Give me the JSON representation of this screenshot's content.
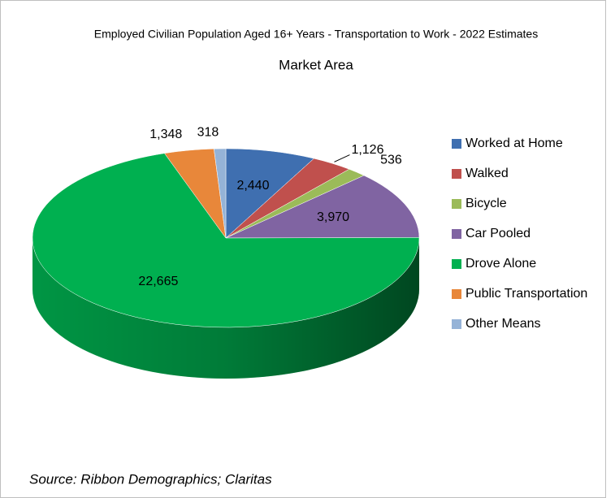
{
  "chart_data": {
    "type": "pie",
    "title": "Employed Civilian Population Aged 16+ Years - Transportation to Work - 2022 Estimates",
    "subtitle": "Market Area",
    "categories": [
      "Worked at Home",
      "Walked",
      "Bicycle",
      "Car Pooled",
      "Drove Alone",
      "Public Transportation",
      "Other Means"
    ],
    "values": [
      2440,
      1126,
      536,
      3970,
      22665,
      1348,
      318
    ],
    "value_labels": [
      "2,440",
      "1,126",
      "536",
      "3,970",
      "22,665",
      "1,348",
      "318"
    ],
    "colors": [
      "#3f6fb0",
      "#c0504d",
      "#9bbb59",
      "#8064a2",
      "#00b050",
      "#e8873a",
      "#95b3d7"
    ],
    "legend": "right",
    "source": "Source: Ribbon Demographics; Claritas"
  }
}
